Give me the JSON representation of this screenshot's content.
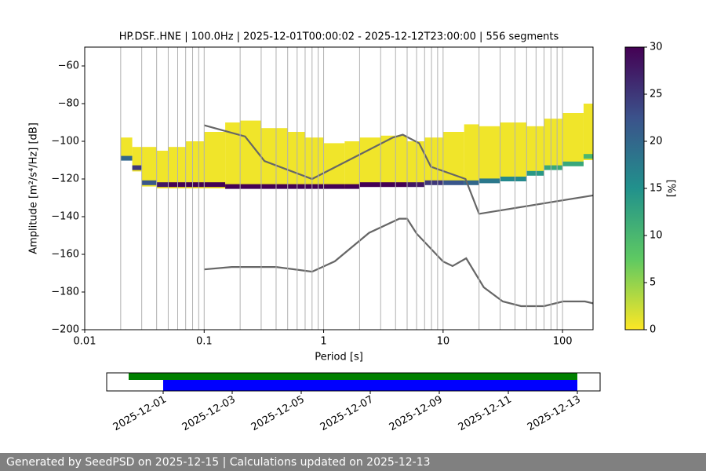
{
  "chart_data": [
    {
      "type": "heatmap",
      "title": "HP.DSF..HNE | 100.0Hz | 2025-12-01T00:00:02 - 2025-12-12T23:00:00 | 556 segments",
      "xlabel": "Period [s]",
      "ylabel": "Amplitude [m²/s⁴/Hz] [dB]",
      "xscale": "log",
      "xlim": [
        0.01,
        180
      ],
      "xticks": [
        0.01,
        0.1,
        1,
        10,
        100
      ],
      "xminorticks": [
        0.02,
        0.03,
        0.04,
        0.05,
        0.06,
        0.07,
        0.08,
        0.09,
        0.2,
        0.3,
        0.4,
        0.5,
        0.6,
        0.7,
        0.8,
        0.9,
        2,
        3,
        4,
        5,
        6,
        7,
        8,
        9,
        20,
        30,
        40,
        50,
        60,
        70,
        80,
        90
      ],
      "ylim": [
        -200,
        -50
      ],
      "yticks": [
        {
          "value": -200,
          "label": "−200"
        },
        {
          "value": -180,
          "label": "−180"
        },
        {
          "value": -160,
          "label": "−160"
        },
        {
          "value": -140,
          "label": "−140"
        },
        {
          "value": -120,
          "label": "−120"
        },
        {
          "value": -100,
          "label": "−100"
        },
        {
          "value": -80,
          "label": "−80"
        },
        {
          "value": -60,
          "label": "−60"
        }
      ],
      "grid": true,
      "density": {
        "period": [
          0.02,
          0.025,
          0.03,
          0.04,
          0.05,
          0.07,
          0.1,
          0.15,
          0.2,
          0.3,
          0.5,
          0.7,
          1,
          1.5,
          2,
          3,
          5,
          7,
          10,
          15,
          20,
          30,
          50,
          70,
          100,
          150
        ],
        "upper": [
          -98,
          -103,
          -103,
          -105,
          -103,
          -100,
          -95,
          -90,
          -89,
          -93,
          -95,
          -98,
          -101,
          -100,
          -98,
          -97,
          -100,
          -98,
          -95,
          -91,
          -92,
          -90,
          -92,
          -88,
          -85,
          -80
        ],
        "lower": [
          -110,
          -116,
          -124,
          -125,
          -125,
          -125,
          -125,
          -125,
          -125,
          -125,
          -125,
          -125,
          -125,
          -124,
          -124,
          -124,
          -123,
          -123,
          -123,
          -122,
          -121,
          -120,
          -118,
          -115,
          -113,
          -110
        ],
        "mode": [
          -109,
          -114,
          -122,
          -123,
          -123,
          -123,
          -123,
          -124,
          -124,
          -124,
          -124,
          -124,
          -124,
          -124,
          -123,
          -123,
          -123,
          -122,
          -122,
          -122,
          -121,
          -120,
          -117,
          -114,
          -112,
          -108
        ],
        "percent": [
          20,
          25,
          22,
          28,
          30,
          30,
          30,
          30,
          30,
          30,
          30,
          30,
          30,
          30,
          30,
          30,
          28,
          25,
          22,
          20,
          18,
          16,
          14,
          12,
          12,
          10
        ]
      },
      "series": [
        {
          "color": "#666666",
          "x": [
            0.1,
            0.22,
            0.32,
            0.8,
            3.8,
            4.6,
            6.3,
            7.9,
            15.4,
            20,
            180
          ],
          "values": [
            -91.5,
            -97.4,
            -110.5,
            -120,
            -98,
            -96.5,
            -101,
            -113.5,
            -120,
            -138.5,
            -128.7
          ]
        },
        {
          "color": "#666666",
          "x": [
            0.1,
            0.17,
            0.4,
            0.8,
            1.24,
            2.4,
            4.3,
            5,
            6,
            10,
            12,
            15.6,
            21.9,
            31.6,
            45,
            70,
            101,
            154,
            180
          ],
          "values": [
            -168,
            -166.7,
            -166.7,
            -169.2,
            -163.7,
            -148.6,
            -141.1,
            -141.1,
            -149,
            -163.8,
            -166.2,
            -162.1,
            -177.5,
            -185,
            -187.5,
            -187.5,
            -185,
            -185,
            -186
          ]
        }
      ],
      "colorbar": {
        "label": "[%]",
        "lim": [
          0,
          30
        ],
        "ticks": [
          0,
          5,
          10,
          15,
          20,
          25,
          30
        ],
        "colormap": "viridis_r"
      }
    },
    {
      "type": "timeline",
      "xlim": [
        "2025-11-29T08:44:00Z",
        "2025-12-13T15:49:00Z"
      ],
      "xticks": [
        "2025-12-01",
        "2025-12-03",
        "2025-12-05",
        "2025-12-07",
        "2025-12-09",
        "2025-12-11",
        "2025-12-13"
      ],
      "bars": [
        {
          "color": "#008000",
          "start": "2025-11-30",
          "end": "2025-12-13"
        },
        {
          "color": "#0000ff",
          "start": "2025-12-01",
          "end": "2025-12-13"
        }
      ]
    }
  ],
  "footer": "Generated by SeedPSD on 2025-12-15 | Calculations updated on 2025-12-13"
}
